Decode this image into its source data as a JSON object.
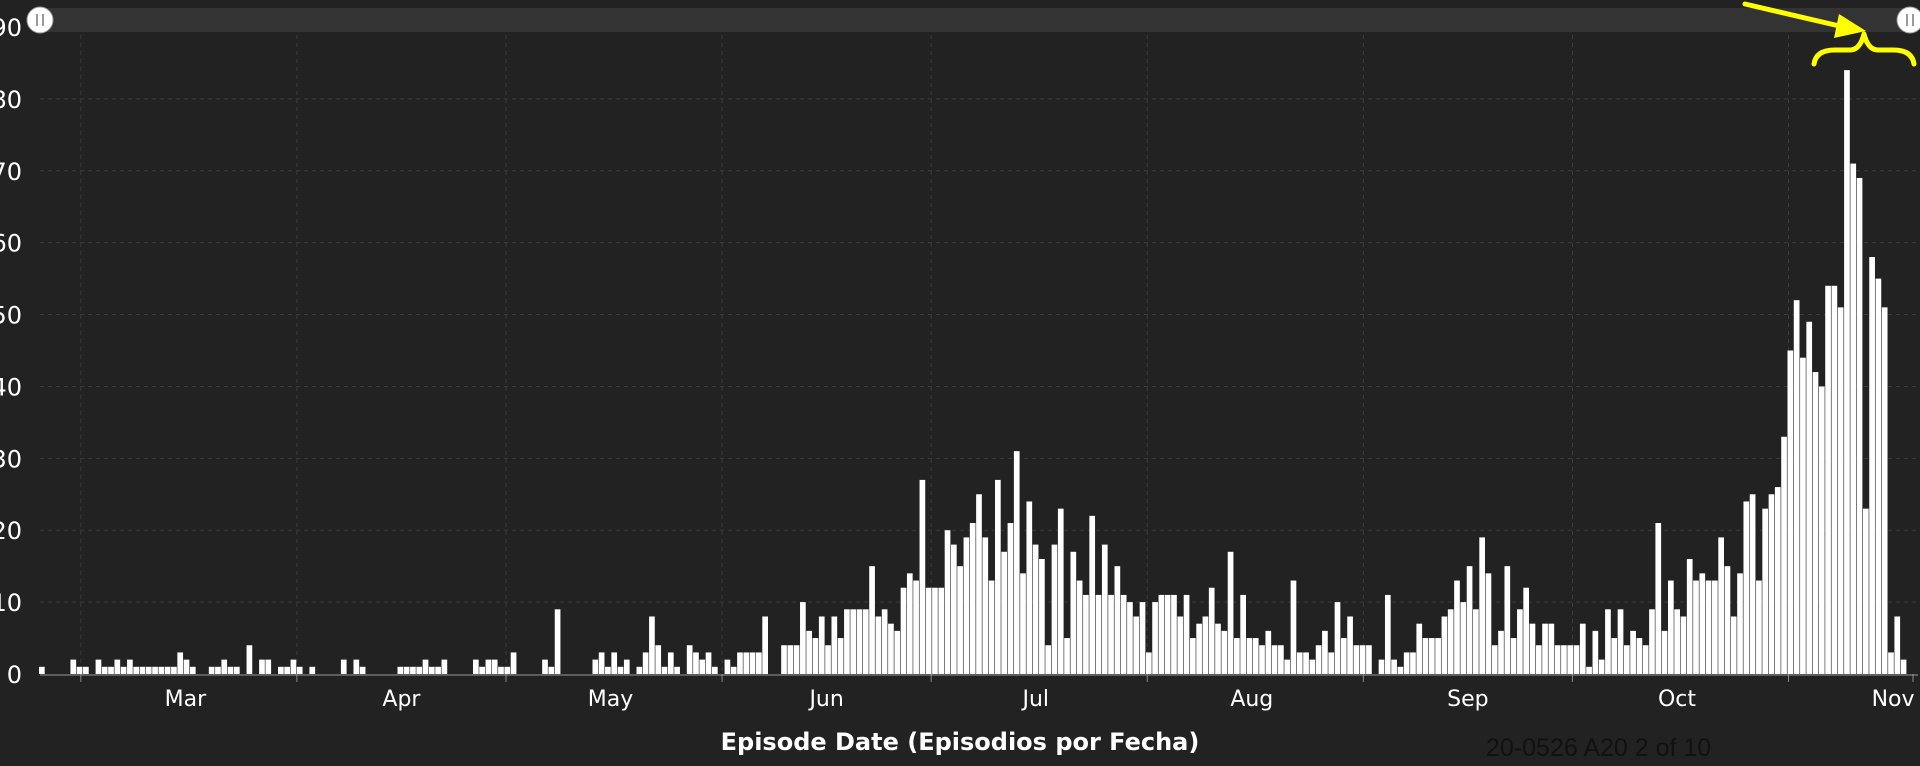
{
  "chart_data": {
    "type": "bar",
    "title": "",
    "xlabel": "Episode Date (Episodios por Fecha)",
    "ylabel": "",
    "ylim": [
      0,
      90
    ],
    "y_ticks": [
      "0",
      "10",
      "20",
      "30",
      "40",
      "50",
      "60",
      "70",
      "80",
      "90"
    ],
    "y_tick_labels_shown": [
      "0",
      "10",
      "20",
      "30",
      "40",
      "50",
      "60",
      "70",
      "80",
      "90"
    ],
    "x_tick_labels": [
      "Mar",
      "Apr",
      "May",
      "Jun",
      "Jul",
      "Aug",
      "Sep",
      "Oct",
      "Nov"
    ],
    "grid": true,
    "bar_color": "#ffffff",
    "x_start": "2020-02-24",
    "x_end": "2020-11-18",
    "values": [
      1,
      0,
      0,
      0,
      0,
      2,
      1,
      1,
      0,
      2,
      1,
      1,
      2,
      1,
      2,
      1,
      1,
      1,
      1,
      1,
      1,
      1,
      3,
      2,
      1,
      0,
      0,
      1,
      1,
      2,
      1,
      1,
      0,
      4,
      0,
      2,
      2,
      0,
      1,
      1,
      2,
      1,
      0,
      1,
      0,
      0,
      0,
      0,
      2,
      0,
      2,
      1,
      0,
      0,
      0,
      0,
      0,
      1,
      1,
      1,
      1,
      2,
      1,
      1,
      2,
      0,
      0,
      0,
      0,
      2,
      1,
      2,
      2,
      1,
      1,
      3,
      0,
      0,
      0,
      0,
      2,
      1,
      9,
      0,
      0,
      0,
      0,
      0,
      2,
      3,
      1,
      3,
      1,
      2,
      0,
      1,
      3,
      8,
      4,
      1,
      3,
      1,
      0,
      4,
      3,
      2,
      3,
      1,
      0,
      2,
      1,
      3,
      3,
      3,
      3,
      8,
      0,
      0,
      4,
      4,
      4,
      10,
      6,
      5,
      8,
      4,
      8,
      5,
      9,
      9,
      9,
      9,
      15,
      8,
      9,
      7,
      6,
      12,
      14,
      13,
      27,
      12,
      12,
      12,
      20,
      18,
      15,
      19,
      21,
      25,
      19,
      13,
      27,
      17,
      21,
      31,
      14,
      24,
      18,
      16,
      4,
      18,
      23,
      5,
      17,
      13,
      11,
      22,
      11,
      18,
      11,
      15,
      11,
      10,
      8,
      10,
      3,
      10,
      11,
      11,
      11,
      8,
      11,
      5,
      7,
      8,
      12,
      7,
      6,
      17,
      5,
      11,
      5,
      5,
      4,
      6,
      4,
      4,
      2,
      13,
      3,
      3,
      2,
      4,
      6,
      3,
      10,
      5,
      8,
      4,
      4,
      4,
      0,
      2,
      11,
      2,
      1,
      3,
      3,
      7,
      5,
      5,
      5,
      8,
      9,
      13,
      10,
      15,
      9,
      19,
      14,
      4,
      6,
      15,
      5,
      9,
      12,
      7,
      4,
      7,
      7,
      4,
      4,
      4,
      4,
      7,
      1,
      6,
      2,
      9,
      5,
      9,
      4,
      6,
      5,
      4,
      9,
      21,
      6,
      13,
      9,
      8,
      16,
      13,
      14,
      13,
      13,
      19,
      15,
      8,
      14,
      24,
      25,
      13,
      23,
      25,
      26,
      33,
      45,
      52,
      44,
      49,
      42,
      40,
      54,
      54,
      51,
      84,
      71,
      69,
      23,
      58,
      55,
      51,
      3,
      8,
      2
    ]
  },
  "annotations": {
    "arrow_color": "#ffff00",
    "brace_color": "#ffff00"
  },
  "watermark": "20-0526 A20 2 of 10",
  "colors": {
    "background": "#222222",
    "grid": "#3c3c3c",
    "text": "#ffffff",
    "slider_bar": "#333333"
  }
}
